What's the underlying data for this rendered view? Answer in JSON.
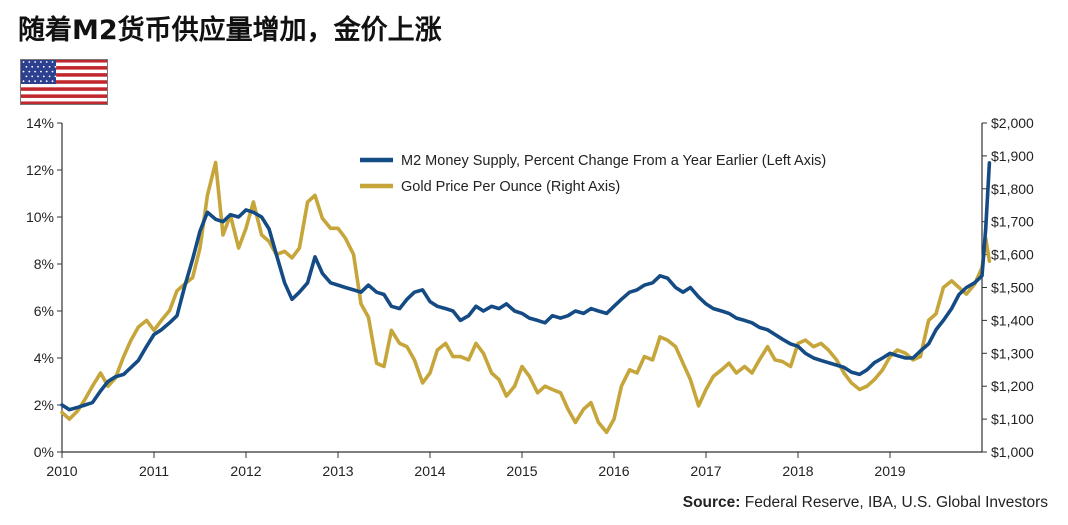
{
  "title": "随着M2货币供应量增加，金价上涨",
  "source": {
    "label": "Source:",
    "text": " Federal Reserve, IBA, U.S. Global Investors"
  },
  "colors": {
    "m2": "#154b85",
    "gold": "#c6a53a",
    "axis": "#333333"
  },
  "chart_data": {
    "type": "line",
    "x_axis": {
      "ticks": [
        "2010",
        "2011",
        "2012",
        "2013",
        "2014",
        "2015",
        "2016",
        "2017",
        "2018",
        "2019"
      ],
      "range": [
        "2010-01",
        "2020-01"
      ]
    },
    "y_left": {
      "label": "",
      "ticks": [
        "0%",
        "2%",
        "4%",
        "6%",
        "8%",
        "10%",
        "12%",
        "14%"
      ],
      "range": [
        0,
        14
      ]
    },
    "y_right": {
      "label": "",
      "ticks": [
        "$1,000",
        "$1,100",
        "$1,200",
        "$1,300",
        "$1,400",
        "$1,500",
        "$1,600",
        "$1,700",
        "$1,800",
        "$1,900",
        "$2,000"
      ],
      "range": [
        1000,
        2000
      ]
    },
    "legend": {
      "position": "top-center"
    },
    "series": [
      {
        "name": "M2 Money Supply, Percent Change From a Year Earlier (Left Axis)",
        "axis": "left",
        "points": [
          [
            2010.0,
            2.0
          ],
          [
            2010.08,
            1.8
          ],
          [
            2010.17,
            1.9
          ],
          [
            2010.25,
            2.0
          ],
          [
            2010.33,
            2.1
          ],
          [
            2010.42,
            2.6
          ],
          [
            2010.5,
            3.0
          ],
          [
            2010.58,
            3.2
          ],
          [
            2010.67,
            3.3
          ],
          [
            2010.75,
            3.6
          ],
          [
            2010.83,
            3.9
          ],
          [
            2010.92,
            4.5
          ],
          [
            2011.0,
            5.0
          ],
          [
            2011.08,
            5.2
          ],
          [
            2011.17,
            5.5
          ],
          [
            2011.25,
            5.8
          ],
          [
            2011.33,
            7.0
          ],
          [
            2011.42,
            8.2
          ],
          [
            2011.5,
            9.4
          ],
          [
            2011.58,
            10.2
          ],
          [
            2011.67,
            9.9
          ],
          [
            2011.75,
            9.8
          ],
          [
            2011.83,
            10.1
          ],
          [
            2011.92,
            10.0
          ],
          [
            2012.0,
            10.3
          ],
          [
            2012.08,
            10.2
          ],
          [
            2012.17,
            10.0
          ],
          [
            2012.25,
            9.5
          ],
          [
            2012.33,
            8.4
          ],
          [
            2012.42,
            7.2
          ],
          [
            2012.5,
            6.5
          ],
          [
            2012.58,
            6.8
          ],
          [
            2012.67,
            7.2
          ],
          [
            2012.75,
            8.3
          ],
          [
            2012.83,
            7.6
          ],
          [
            2012.92,
            7.2
          ],
          [
            2013.0,
            7.1
          ],
          [
            2013.08,
            7.0
          ],
          [
            2013.17,
            6.9
          ],
          [
            2013.25,
            6.8
          ],
          [
            2013.33,
            7.1
          ],
          [
            2013.42,
            6.8
          ],
          [
            2013.5,
            6.7
          ],
          [
            2013.58,
            6.2
          ],
          [
            2013.67,
            6.1
          ],
          [
            2013.75,
            6.5
          ],
          [
            2013.83,
            6.8
          ],
          [
            2013.92,
            6.9
          ],
          [
            2014.0,
            6.4
          ],
          [
            2014.08,
            6.2
          ],
          [
            2014.17,
            6.1
          ],
          [
            2014.25,
            6.0
          ],
          [
            2014.33,
            5.6
          ],
          [
            2014.42,
            5.8
          ],
          [
            2014.5,
            6.2
          ],
          [
            2014.58,
            6.0
          ],
          [
            2014.67,
            6.2
          ],
          [
            2014.75,
            6.1
          ],
          [
            2014.83,
            6.3
          ],
          [
            2014.92,
            6.0
          ],
          [
            2015.0,
            5.9
          ],
          [
            2015.08,
            5.7
          ],
          [
            2015.17,
            5.6
          ],
          [
            2015.25,
            5.5
          ],
          [
            2015.33,
            5.8
          ],
          [
            2015.42,
            5.7
          ],
          [
            2015.5,
            5.8
          ],
          [
            2015.58,
            6.0
          ],
          [
            2015.67,
            5.9
          ],
          [
            2015.75,
            6.1
          ],
          [
            2015.83,
            6.0
          ],
          [
            2015.92,
            5.9
          ],
          [
            2016.0,
            6.2
          ],
          [
            2016.08,
            6.5
          ],
          [
            2016.17,
            6.8
          ],
          [
            2016.25,
            6.9
          ],
          [
            2016.33,
            7.1
          ],
          [
            2016.42,
            7.2
          ],
          [
            2016.5,
            7.5
          ],
          [
            2016.58,
            7.4
          ],
          [
            2016.67,
            7.0
          ],
          [
            2016.75,
            6.8
          ],
          [
            2016.83,
            7.0
          ],
          [
            2016.92,
            6.6
          ],
          [
            2017.0,
            6.3
          ],
          [
            2017.08,
            6.1
          ],
          [
            2017.17,
            6.0
          ],
          [
            2017.25,
            5.9
          ],
          [
            2017.33,
            5.7
          ],
          [
            2017.42,
            5.6
          ],
          [
            2017.5,
            5.5
          ],
          [
            2017.58,
            5.3
          ],
          [
            2017.67,
            5.2
          ],
          [
            2017.75,
            5.0
          ],
          [
            2017.83,
            4.8
          ],
          [
            2017.92,
            4.6
          ],
          [
            2018.0,
            4.5
          ],
          [
            2018.08,
            4.2
          ],
          [
            2018.17,
            4.0
          ],
          [
            2018.25,
            3.9
          ],
          [
            2018.33,
            3.8
          ],
          [
            2018.42,
            3.7
          ],
          [
            2018.5,
            3.6
          ],
          [
            2018.58,
            3.4
          ],
          [
            2018.67,
            3.3
          ],
          [
            2018.75,
            3.5
          ],
          [
            2018.83,
            3.8
          ],
          [
            2018.92,
            4.0
          ],
          [
            2019.0,
            4.2
          ],
          [
            2019.08,
            4.1
          ],
          [
            2019.17,
            4.0
          ],
          [
            2019.25,
            4.0
          ],
          [
            2019.33,
            4.3
          ],
          [
            2019.42,
            4.6
          ],
          [
            2019.5,
            5.2
          ],
          [
            2019.58,
            5.6
          ],
          [
            2019.67,
            6.1
          ],
          [
            2019.75,
            6.7
          ],
          [
            2019.83,
            7.0
          ],
          [
            2019.92,
            7.2
          ],
          [
            2020.0,
            7.5
          ],
          [
            2020.04,
            9.5
          ],
          [
            2020.08,
            12.3
          ]
        ]
      },
      {
        "name": "Gold Price Per Ounce (Right Axis)",
        "axis": "right",
        "points": [
          [
            2010.0,
            1120
          ],
          [
            2010.08,
            1100
          ],
          [
            2010.17,
            1125
          ],
          [
            2010.25,
            1160
          ],
          [
            2010.33,
            1200
          ],
          [
            2010.42,
            1240
          ],
          [
            2010.5,
            1200
          ],
          [
            2010.58,
            1225
          ],
          [
            2010.67,
            1290
          ],
          [
            2010.75,
            1340
          ],
          [
            2010.83,
            1380
          ],
          [
            2010.92,
            1400
          ],
          [
            2011.0,
            1370
          ],
          [
            2011.08,
            1400
          ],
          [
            2011.17,
            1430
          ],
          [
            2011.25,
            1490
          ],
          [
            2011.33,
            1510
          ],
          [
            2011.42,
            1530
          ],
          [
            2011.5,
            1620
          ],
          [
            2011.58,
            1780
          ],
          [
            2011.67,
            1880
          ],
          [
            2011.75,
            1660
          ],
          [
            2011.83,
            1720
          ],
          [
            2011.92,
            1620
          ],
          [
            2012.0,
            1680
          ],
          [
            2012.08,
            1760
          ],
          [
            2012.17,
            1660
          ],
          [
            2012.25,
            1640
          ],
          [
            2012.33,
            1600
          ],
          [
            2012.42,
            1610
          ],
          [
            2012.5,
            1590
          ],
          [
            2012.58,
            1620
          ],
          [
            2012.67,
            1760
          ],
          [
            2012.75,
            1780
          ],
          [
            2012.83,
            1710
          ],
          [
            2012.92,
            1680
          ],
          [
            2013.0,
            1680
          ],
          [
            2013.08,
            1650
          ],
          [
            2013.17,
            1600
          ],
          [
            2013.25,
            1450
          ],
          [
            2013.33,
            1410
          ],
          [
            2013.42,
            1270
          ],
          [
            2013.5,
            1260
          ],
          [
            2013.58,
            1370
          ],
          [
            2013.67,
            1330
          ],
          [
            2013.75,
            1320
          ],
          [
            2013.83,
            1280
          ],
          [
            2013.92,
            1210
          ],
          [
            2014.0,
            1240
          ],
          [
            2014.08,
            1310
          ],
          [
            2014.17,
            1330
          ],
          [
            2014.25,
            1290
          ],
          [
            2014.33,
            1290
          ],
          [
            2014.42,
            1280
          ],
          [
            2014.5,
            1330
          ],
          [
            2014.58,
            1300
          ],
          [
            2014.67,
            1240
          ],
          [
            2014.75,
            1220
          ],
          [
            2014.83,
            1170
          ],
          [
            2014.92,
            1200
          ],
          [
            2015.0,
            1260
          ],
          [
            2015.08,
            1230
          ],
          [
            2015.17,
            1180
          ],
          [
            2015.25,
            1200
          ],
          [
            2015.33,
            1190
          ],
          [
            2015.42,
            1180
          ],
          [
            2015.5,
            1130
          ],
          [
            2015.58,
            1090
          ],
          [
            2015.67,
            1130
          ],
          [
            2015.75,
            1150
          ],
          [
            2015.83,
            1090
          ],
          [
            2015.92,
            1060
          ],
          [
            2016.0,
            1100
          ],
          [
            2016.08,
            1200
          ],
          [
            2016.17,
            1250
          ],
          [
            2016.25,
            1240
          ],
          [
            2016.33,
            1290
          ],
          [
            2016.42,
            1280
          ],
          [
            2016.5,
            1350
          ],
          [
            2016.58,
            1340
          ],
          [
            2016.67,
            1320
          ],
          [
            2016.75,
            1270
          ],
          [
            2016.83,
            1220
          ],
          [
            2016.92,
            1140
          ],
          [
            2017.0,
            1190
          ],
          [
            2017.08,
            1230
          ],
          [
            2017.17,
            1250
          ],
          [
            2017.25,
            1270
          ],
          [
            2017.33,
            1240
          ],
          [
            2017.42,
            1260
          ],
          [
            2017.5,
            1240
          ],
          [
            2017.58,
            1280
          ],
          [
            2017.67,
            1320
          ],
          [
            2017.75,
            1280
          ],
          [
            2017.83,
            1275
          ],
          [
            2017.92,
            1260
          ],
          [
            2018.0,
            1330
          ],
          [
            2018.08,
            1340
          ],
          [
            2018.17,
            1320
          ],
          [
            2018.25,
            1330
          ],
          [
            2018.33,
            1310
          ],
          [
            2018.42,
            1280
          ],
          [
            2018.5,
            1240
          ],
          [
            2018.58,
            1210
          ],
          [
            2018.67,
            1190
          ],
          [
            2018.75,
            1200
          ],
          [
            2018.83,
            1220
          ],
          [
            2018.92,
            1250
          ],
          [
            2019.0,
            1290
          ],
          [
            2019.08,
            1310
          ],
          [
            2019.17,
            1300
          ],
          [
            2019.25,
            1280
          ],
          [
            2019.33,
            1290
          ],
          [
            2019.42,
            1400
          ],
          [
            2019.5,
            1420
          ],
          [
            2019.58,
            1500
          ],
          [
            2019.67,
            1520
          ],
          [
            2019.75,
            1500
          ],
          [
            2019.83,
            1480
          ],
          [
            2019.92,
            1510
          ],
          [
            2020.0,
            1560
          ],
          [
            2020.04,
            1650
          ],
          [
            2020.08,
            1580
          ]
        ]
      }
    ]
  }
}
